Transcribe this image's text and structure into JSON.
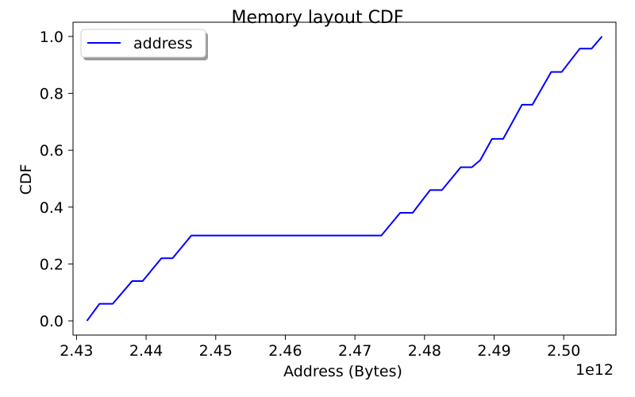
{
  "chart_data": {
    "type": "line",
    "title": "Memory layout CDF",
    "xlabel": "Address (Bytes)",
    "ylabel": "CDF",
    "x_offset_label": "1e12",
    "xlim": [
      2.4295,
      2.5075
    ],
    "ylim": [
      -0.05,
      1.05
    ],
    "xticks": [
      2.43,
      2.44,
      2.45,
      2.46,
      2.47,
      2.48,
      2.49,
      2.5
    ],
    "xtick_labels": [
      "2.43",
      "2.44",
      "2.45",
      "2.46",
      "2.47",
      "2.48",
      "2.49",
      "2.50"
    ],
    "yticks": [
      0.0,
      0.2,
      0.4,
      0.6,
      0.8,
      1.0
    ],
    "ytick_labels": [
      "0.0",
      "0.2",
      "0.4",
      "0.6",
      "0.8",
      "1.0"
    ],
    "grid": false,
    "legend": "upper-left",
    "series": [
      {
        "name": "address",
        "color": "#0000ff",
        "x": [
          2.4315,
          2.4333,
          2.4352,
          2.438,
          2.4395,
          2.4422,
          2.4438,
          2.4465,
          2.4738,
          2.4765,
          2.4783,
          2.4808,
          2.4825,
          2.4852,
          2.4868,
          2.488,
          2.4897,
          2.4913,
          2.494,
          2.4955,
          2.4982,
          2.4997,
          2.5023,
          2.504,
          2.5055
        ],
        "y": [
          0.0,
          0.06,
          0.06,
          0.14,
          0.14,
          0.22,
          0.22,
          0.3,
          0.3,
          0.38,
          0.38,
          0.46,
          0.46,
          0.54,
          0.54,
          0.565,
          0.64,
          0.64,
          0.76,
          0.76,
          0.875,
          0.875,
          0.957,
          0.957,
          1.0
        ]
      }
    ]
  }
}
